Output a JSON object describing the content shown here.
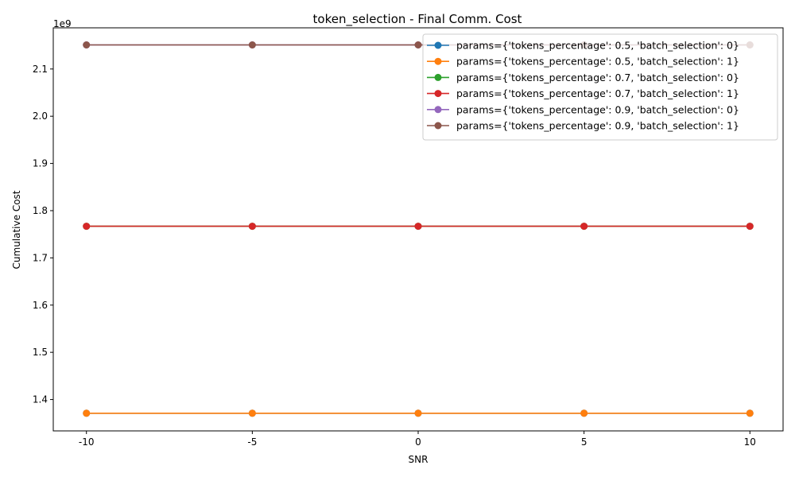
{
  "chart_data": {
    "type": "line",
    "title": "token_selection - Final Comm. Cost",
    "xlabel": "SNR",
    "ylabel": "Cumulative Cost",
    "y_offset_text": "1e9",
    "x": [
      -10,
      -5,
      0,
      5,
      10
    ],
    "x_tick_labels": [
      "-10",
      "-5",
      "0",
      "5",
      "10"
    ],
    "xlim": [
      -11,
      11
    ],
    "ylim": [
      1.3336,
      2.1872
    ],
    "y_ticks": [
      1.4,
      1.5,
      1.6,
      1.7,
      1.8,
      1.9,
      2.0,
      2.1
    ],
    "y_tick_labels": [
      "1.4",
      "1.5",
      "1.6",
      "1.7",
      "1.8",
      "1.9",
      "2.0",
      "2.1"
    ],
    "grid": false,
    "legend_position": "top-right",
    "series": [
      {
        "name": "params={'tokens_percentage': 0.5, 'batch_selection': 0}",
        "color": "#1f77b4",
        "values": [
          1.371,
          1.371,
          1.371,
          1.371,
          1.371
        ]
      },
      {
        "name": "params={'tokens_percentage': 0.5, 'batch_selection': 1}",
        "color": "#ff7f0e",
        "values": [
          1.371,
          1.371,
          1.371,
          1.371,
          1.371
        ]
      },
      {
        "name": "params={'tokens_percentage': 0.7, 'batch_selection': 0}",
        "color": "#2ca02c",
        "values": [
          1.767,
          1.767,
          1.767,
          1.767,
          1.767
        ]
      },
      {
        "name": "params={'tokens_percentage': 0.7, 'batch_selection': 1}",
        "color": "#d62728",
        "values": [
          1.767,
          1.767,
          1.767,
          1.767,
          1.767
        ]
      },
      {
        "name": "params={'tokens_percentage': 0.9, 'batch_selection': 0}",
        "color": "#9467bd",
        "values": [
          2.151,
          2.151,
          2.151,
          2.151,
          2.151
        ]
      },
      {
        "name": "params={'tokens_percentage': 0.9, 'batch_selection': 1}",
        "color": "#8c564b",
        "values": [
          2.151,
          2.151,
          2.151,
          2.151,
          2.151
        ]
      }
    ]
  }
}
